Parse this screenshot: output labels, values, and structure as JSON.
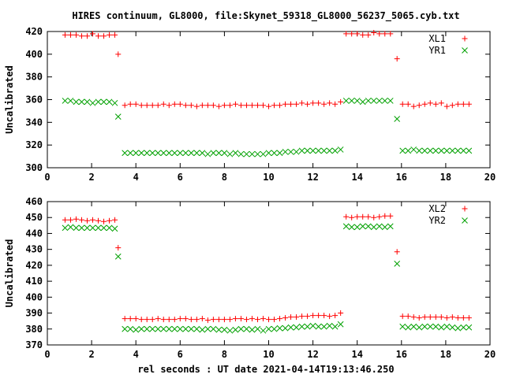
{
  "chart_data": {
    "title": "HIRES continuum, GL8000, file:Skynet_59318_GL8000_56237_5065.cyb.txt",
    "xlabel": "rel seconds : UT date 2021-04-14T19:13:46.250",
    "panels": [
      {
        "type": "scatter",
        "ylabel": "Uncalibrated",
        "xlim": [
          0,
          20
        ],
        "ylim": [
          300,
          420
        ],
        "xticks": [
          0,
          2,
          4,
          6,
          8,
          10,
          12,
          14,
          16,
          18,
          20
        ],
        "yticks": [
          300,
          320,
          340,
          360,
          380,
          400,
          420
        ],
        "legend_position": "top-right",
        "series": [
          {
            "name": "XL1",
            "marker": "plus",
            "color": "#ff0000",
            "x": [
              0.8,
              1.05,
              1.3,
              1.55,
              1.8,
              2.05,
              2.3,
              2.55,
              2.8,
              3.05,
              3.2,
              3.5,
              3.75,
              4,
              4.25,
              4.5,
              4.75,
              5,
              5.25,
              5.5,
              5.75,
              6,
              6.25,
              6.5,
              6.75,
              7,
              7.25,
              7.5,
              7.75,
              8,
              8.25,
              8.5,
              8.75,
              9,
              9.25,
              9.5,
              9.75,
              10,
              10.25,
              10.5,
              10.75,
              11,
              11.25,
              11.5,
              11.75,
              12,
              12.25,
              12.5,
              12.75,
              13,
              13.25,
              13.5,
              13.75,
              14,
              14.25,
              14.5,
              14.75,
              15,
              15.25,
              15.5,
              15.8,
              16.05,
              16.3,
              16.55,
              16.8,
              17.05,
              17.3,
              17.55,
              17.8,
              18.05,
              18.3,
              18.55,
              18.8,
              19.05
            ],
            "y": [
              417,
              417,
              417,
              416,
              416,
              418,
              416,
              416,
              417,
              417,
              400,
              355,
              356,
              356,
              355,
              355,
              355,
              355,
              356,
              355,
              356,
              356,
              355,
              355,
              354,
              355,
              355,
              355,
              354,
              355,
              355,
              356,
              355,
              355,
              355,
              355,
              355,
              354,
              355,
              355,
              356,
              356,
              356,
              357,
              356,
              357,
              357,
              356,
              357,
              356,
              358,
              418,
              418,
              418,
              417,
              417,
              419,
              418,
              418,
              418,
              396,
              356,
              356,
              354,
              355,
              356,
              357,
              356,
              357,
              354,
              355,
              356,
              356,
              356
            ]
          },
          {
            "name": "YR1",
            "marker": "cross",
            "color": "#00a000",
            "x": [
              0.8,
              1.05,
              1.3,
              1.55,
              1.8,
              2.05,
              2.3,
              2.55,
              2.8,
              3.05,
              3.2,
              3.5,
              3.75,
              4,
              4.25,
              4.5,
              4.75,
              5,
              5.25,
              5.5,
              5.75,
              6,
              6.25,
              6.5,
              6.75,
              7,
              7.25,
              7.5,
              7.75,
              8,
              8.25,
              8.5,
              8.75,
              9,
              9.25,
              9.5,
              9.75,
              10,
              10.25,
              10.5,
              10.75,
              11,
              11.25,
              11.5,
              11.75,
              12,
              12.25,
              12.5,
              12.75,
              13,
              13.25,
              13.5,
              13.75,
              14,
              14.25,
              14.5,
              14.75,
              15,
              15.25,
              15.5,
              15.8,
              16.05,
              16.3,
              16.55,
              16.8,
              17.05,
              17.3,
              17.55,
              17.8,
              18.05,
              18.3,
              18.55,
              18.8,
              19.05
            ],
            "y": [
              359,
              359,
              358,
              358,
              358,
              357,
              358,
              358,
              358,
              357,
              345,
              313,
              313,
              313,
              313,
              313,
              313,
              313,
              313,
              313,
              313,
              313,
              313,
              313,
              313,
              313,
              312,
              313,
              313,
              313,
              312,
              313,
              312,
              312,
              312,
              312,
              312,
              313,
              313,
              313,
              314,
              314,
              314,
              315,
              315,
              315,
              315,
              315,
              315,
              315,
              316,
              359,
              359,
              359,
              358,
              359,
              359,
              359,
              359,
              359,
              343,
              315,
              315,
              316,
              315,
              315,
              315,
              315,
              315,
              315,
              315,
              315,
              315,
              315
            ]
          }
        ]
      },
      {
        "type": "scatter",
        "ylabel": "Uncalibrated",
        "xlim": [
          0,
          20
        ],
        "ylim": [
          370,
          460
        ],
        "xticks": [
          0,
          2,
          4,
          6,
          8,
          10,
          12,
          14,
          16,
          18,
          20
        ],
        "yticks": [
          370,
          380,
          390,
          400,
          410,
          420,
          430,
          440,
          450,
          460
        ],
        "legend_position": "top-right",
        "series": [
          {
            "name": "XL2",
            "marker": "plus",
            "color": "#ff0000",
            "x": [
              0.8,
              1.05,
              1.3,
              1.55,
              1.8,
              2.05,
              2.3,
              2.55,
              2.8,
              3.05,
              3.2,
              3.5,
              3.75,
              4,
              4.25,
              4.5,
              4.75,
              5,
              5.25,
              5.5,
              5.75,
              6,
              6.25,
              6.5,
              6.75,
              7,
              7.25,
              7.5,
              7.75,
              8,
              8.25,
              8.5,
              8.75,
              9,
              9.25,
              9.5,
              9.75,
              10,
              10.25,
              10.5,
              10.75,
              11,
              11.25,
              11.5,
              11.75,
              12,
              12.25,
              12.5,
              12.75,
              13,
              13.25,
              13.5,
              13.75,
              14,
              14.25,
              14.5,
              14.75,
              15,
              15.25,
              15.5,
              15.8,
              16.05,
              16.3,
              16.55,
              16.8,
              17.05,
              17.3,
              17.55,
              17.8,
              18.05,
              18.3,
              18.55,
              18.8,
              19.05
            ],
            "y": [
              448.5,
              448.5,
              449,
              448.5,
              448,
              448.5,
              448,
              447.5,
              448,
              448.5,
              431,
              386.5,
              386.5,
              386.5,
              386,
              386,
              386,
              386.5,
              386,
              386,
              386,
              386.5,
              386.5,
              386,
              386,
              386.5,
              385.5,
              386,
              386,
              386,
              386,
              386.5,
              386.5,
              386,
              386.5,
              386,
              386.5,
              386,
              386,
              386.5,
              387,
              387.5,
              387.5,
              388,
              388,
              388.5,
              388.5,
              388.5,
              388,
              388.5,
              390,
              450.5,
              450,
              450.5,
              450.5,
              450.5,
              450,
              450.5,
              451,
              451,
              428.5,
              388,
              388,
              387.5,
              387,
              387.5,
              387.5,
              387.5,
              387.5,
              387,
              387.5,
              387,
              387,
              387
            ]
          },
          {
            "name": "YR2",
            "marker": "cross",
            "color": "#00a000",
            "x": [
              0.8,
              1.05,
              1.3,
              1.55,
              1.8,
              2.05,
              2.3,
              2.55,
              2.8,
              3.05,
              3.2,
              3.5,
              3.75,
              4,
              4.25,
              4.5,
              4.75,
              5,
              5.25,
              5.5,
              5.75,
              6,
              6.25,
              6.5,
              6.75,
              7,
              7.25,
              7.5,
              7.75,
              8,
              8.25,
              8.5,
              8.75,
              9,
              9.25,
              9.5,
              9.75,
              10,
              10.25,
              10.5,
              10.75,
              11,
              11.25,
              11.5,
              11.75,
              12,
              12.25,
              12.5,
              12.75,
              13,
              13.25,
              13.5,
              13.75,
              14,
              14.25,
              14.5,
              14.75,
              15,
              15.25,
              15.5,
              15.8,
              16.05,
              16.3,
              16.55,
              16.8,
              17.05,
              17.3,
              17.55,
              17.8,
              18.05,
              18.3,
              18.55,
              18.8,
              19.05
            ],
            "y": [
              443.5,
              444,
              443.5,
              443.5,
              443.5,
              443.5,
              443.5,
              443.5,
              443.5,
              443,
              425.5,
              380,
              380,
              379.5,
              380,
              380,
              380,
              380,
              380,
              380,
              380,
              380,
              380,
              380,
              380,
              379.5,
              380,
              380,
              379.5,
              379.5,
              379,
              379.5,
              380,
              380,
              379.5,
              380,
              379,
              380,
              380,
              380.5,
              380.5,
              381,
              381,
              381.5,
              381.5,
              382,
              381.5,
              381.5,
              382,
              381.5,
              383,
              444.5,
              444,
              444,
              444.5,
              444.5,
              444,
              444.5,
              444,
              444.5,
              421,
              381.5,
              381,
              381.5,
              381,
              381.5,
              381.5,
              381.5,
              381,
              381.5,
              381,
              380.5,
              381,
              381
            ]
          }
        ]
      }
    ]
  }
}
